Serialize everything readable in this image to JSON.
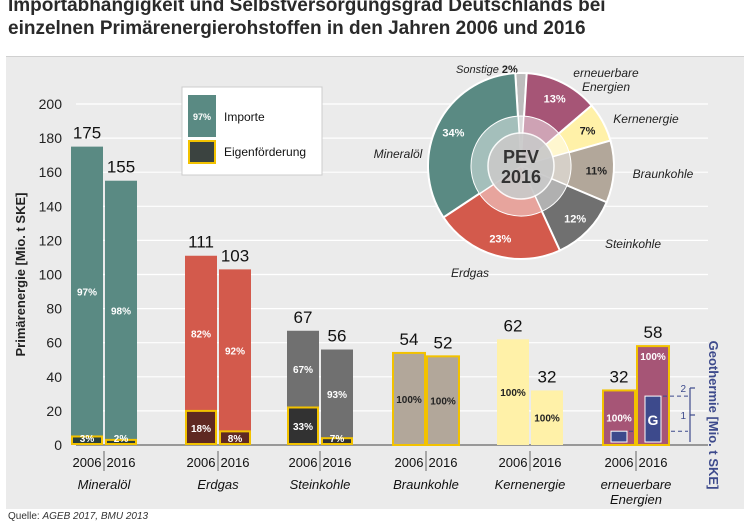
{
  "title_line1": "Importabhängigkeit und Selbstversorgungsgrad Deutschlands bei",
  "title_line2": "einzelnen Primärenergierohstoffen in den Jahren 2006 und 2016",
  "source_label": "Quelle:",
  "source_text": "AGEB 2017, BMU 2013",
  "colors": {
    "panel": "#ebebeb",
    "mineraloel": "#5a8a83",
    "erdgas": "#d35a4c",
    "steinkohle": "#707070",
    "braunkohle": "#b2a79a",
    "kernenergie": "#fff1a8",
    "erneuerbare": "#a65576",
    "eigen_border": "#f2c200",
    "geothermie": "#3d4a8c",
    "sonstige": "#bdbdbd"
  },
  "chart_data": [
    {
      "type": "bar",
      "ylabel": "Primärenergie [Mio. t SKE]",
      "ylim": [
        0,
        200
      ],
      "yticks": [
        0,
        20,
        40,
        60,
        80,
        100,
        120,
        140,
        160,
        180,
        200
      ],
      "legend": {
        "position": "top-center",
        "entries": [
          {
            "name": "Importe",
            "swatch_label": "97%"
          },
          {
            "name": "Eigenförderung",
            "swatch_label": ""
          }
        ]
      },
      "categories": [
        {
          "name": "Mineralöl",
          "color_key": "mineraloel",
          "bars": [
            {
              "year": "2006",
              "total": 175,
              "import_pct": "97%",
              "eigen_pct": "3%",
              "eigen_value": 5
            },
            {
              "year": "2016",
              "total": 155,
              "import_pct": "98%",
              "eigen_pct": "2%",
              "eigen_value": 3
            }
          ]
        },
        {
          "name": "Erdgas",
          "color_key": "erdgas",
          "bars": [
            {
              "year": "2006",
              "total": 111,
              "import_pct": "82%",
              "eigen_pct": "18%",
              "eigen_value": 20
            },
            {
              "year": "2016",
              "total": 103,
              "import_pct": "92%",
              "eigen_pct": "8%",
              "eigen_value": 8
            }
          ]
        },
        {
          "name": "Steinkohle",
          "color_key": "steinkohle",
          "bars": [
            {
              "year": "2006",
              "total": 67,
              "import_pct": "67%",
              "eigen_pct": "33%",
              "eigen_value": 22
            },
            {
              "year": "2016",
              "total": 56,
              "import_pct": "93%",
              "eigen_pct": "7%",
              "eigen_value": 4
            }
          ]
        },
        {
          "name": "Braunkohle",
          "color_key": "braunkohle",
          "bars": [
            {
              "year": "2006",
              "total": 54,
              "import_pct": "",
              "eigen_pct": "100%",
              "eigen_value": 54
            },
            {
              "year": "2016",
              "total": 52,
              "import_pct": "",
              "eigen_pct": "100%",
              "eigen_value": 52
            }
          ]
        },
        {
          "name": "Kernenergie",
          "color_key": "kernenergie",
          "bars": [
            {
              "year": "2006",
              "total": 62,
              "import_pct": "100%",
              "eigen_pct": "",
              "eigen_value": 0
            },
            {
              "year": "2016",
              "total": 32,
              "import_pct": "100%",
              "eigen_pct": "",
              "eigen_value": 0
            }
          ]
        },
        {
          "name": "erneuerbare Energien",
          "color_key": "erneuerbare",
          "bars": [
            {
              "year": "2006",
              "total": 32,
              "import_pct": "",
              "eigen_pct": "100%",
              "eigen_value": 32,
              "geothermie": 0.4,
              "geo_label": ""
            },
            {
              "year": "2016",
              "total": 58,
              "import_pct": "",
              "eigen_pct": "100%",
              "eigen_value": 58,
              "geothermie": 1.7,
              "geo_label": "G"
            }
          ]
        }
      ],
      "secondary_axis": {
        "label": "Geothermie [Mio. t SKE]",
        "ticks": [
          1,
          2
        ],
        "ylim": [
          0,
          2
        ]
      }
    },
    {
      "type": "pie",
      "center_label": "PEV\n2016",
      "slices": [
        {
          "name": "Sonstige",
          "value": 2,
          "label": "2%",
          "color_key": "sonstige"
        },
        {
          "name": "erneuerbare Energien",
          "value": 13,
          "label": "13%",
          "color_key": "erneuerbare"
        },
        {
          "name": "Kernenergie",
          "value": 7,
          "label": "7%",
          "color_key": "kernenergie"
        },
        {
          "name": "Braunkohle",
          "value": 11,
          "label": "11%",
          "color_key": "braunkohle"
        },
        {
          "name": "Steinkohle",
          "value": 12,
          "label": "12%",
          "color_key": "steinkohle"
        },
        {
          "name": "Erdgas",
          "value": 23,
          "label": "23%",
          "color_key": "erdgas"
        },
        {
          "name": "Mineralöl",
          "value": 34,
          "label": "34%",
          "color_key": "mineraloel"
        }
      ]
    }
  ]
}
